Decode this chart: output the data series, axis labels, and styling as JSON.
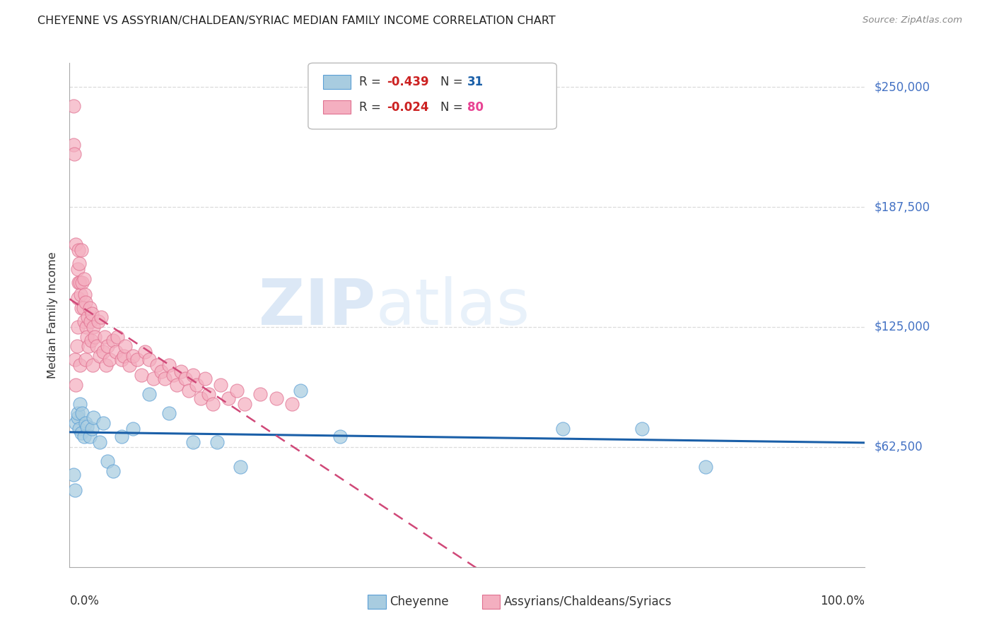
{
  "title": "CHEYENNE VS ASSYRIAN/CHALDEAN/SYRIAC MEDIAN FAMILY INCOME CORRELATION CHART",
  "source": "Source: ZipAtlas.com",
  "ylabel": "Median Family Income",
  "yticks": [
    0,
    62500,
    125000,
    187500,
    250000
  ],
  "ytick_labels": [
    "",
    "$62,500",
    "$125,000",
    "$187,500",
    "$250,000"
  ],
  "xlim": [
    0,
    1
  ],
  "ylim": [
    0,
    262500
  ],
  "cheyenne_label": "Cheyenne",
  "assyrian_label": "Assyrians/Chaldeans/Syriacs",
  "cheyenne_R": -0.439,
  "cheyenne_N": 31,
  "assyrian_R": -0.024,
  "assyrian_N": 80,
  "cheyenne_color": "#a8cce0",
  "assyrian_color": "#f4afc0",
  "cheyenne_edge": "#5b9fd5",
  "assyrian_edge": "#e07090",
  "trend_blue": "#1a5fa8",
  "trend_pink": "#d04878",
  "grid_color": "#cccccc",
  "cheyenne_x": [
    0.005,
    0.007,
    0.008,
    0.01,
    0.01,
    0.012,
    0.013,
    0.015,
    0.016,
    0.018,
    0.02,
    0.022,
    0.025,
    0.028,
    0.03,
    0.038,
    0.042,
    0.048,
    0.055,
    0.065,
    0.08,
    0.1,
    0.125,
    0.155,
    0.185,
    0.215,
    0.29,
    0.34,
    0.62,
    0.72,
    0.8
  ],
  "cheyenne_y": [
    48000,
    40000,
    75000,
    78000,
    80000,
    72000,
    85000,
    70000,
    80000,
    68000,
    75000,
    73000,
    68000,
    72000,
    78000,
    65000,
    75000,
    55000,
    50000,
    68000,
    72000,
    90000,
    80000,
    65000,
    65000,
    52000,
    92000,
    68000,
    72000,
    72000,
    52000
  ],
  "assyrian_x": [
    0.005,
    0.005,
    0.006,
    0.007,
    0.008,
    0.008,
    0.009,
    0.01,
    0.01,
    0.01,
    0.011,
    0.011,
    0.012,
    0.013,
    0.013,
    0.014,
    0.015,
    0.015,
    0.016,
    0.017,
    0.018,
    0.018,
    0.019,
    0.02,
    0.02,
    0.021,
    0.022,
    0.023,
    0.024,
    0.025,
    0.026,
    0.027,
    0.028,
    0.029,
    0.03,
    0.032,
    0.034,
    0.036,
    0.038,
    0.04,
    0.042,
    0.044,
    0.046,
    0.048,
    0.05,
    0.055,
    0.058,
    0.06,
    0.065,
    0.068,
    0.07,
    0.075,
    0.08,
    0.085,
    0.09,
    0.095,
    0.1,
    0.105,
    0.11,
    0.115,
    0.12,
    0.125,
    0.13,
    0.135,
    0.14,
    0.145,
    0.15,
    0.155,
    0.16,
    0.165,
    0.17,
    0.175,
    0.18,
    0.19,
    0.2,
    0.21,
    0.22,
    0.24,
    0.26,
    0.28
  ],
  "assyrian_y": [
    240000,
    220000,
    215000,
    108000,
    95000,
    168000,
    115000,
    155000,
    140000,
    125000,
    165000,
    148000,
    158000,
    105000,
    148000,
    142000,
    135000,
    165000,
    148000,
    135000,
    150000,
    128000,
    142000,
    138000,
    108000,
    125000,
    120000,
    130000,
    115000,
    135000,
    128000,
    118000,
    132000,
    105000,
    125000,
    120000,
    115000,
    128000,
    110000,
    130000,
    112000,
    120000,
    105000,
    115000,
    108000,
    118000,
    112000,
    120000,
    108000,
    110000,
    115000,
    105000,
    110000,
    108000,
    100000,
    112000,
    108000,
    98000,
    105000,
    102000,
    98000,
    105000,
    100000,
    95000,
    102000,
    98000,
    92000,
    100000,
    95000,
    88000,
    98000,
    90000,
    85000,
    95000,
    88000,
    92000,
    85000,
    90000,
    88000,
    85000
  ]
}
